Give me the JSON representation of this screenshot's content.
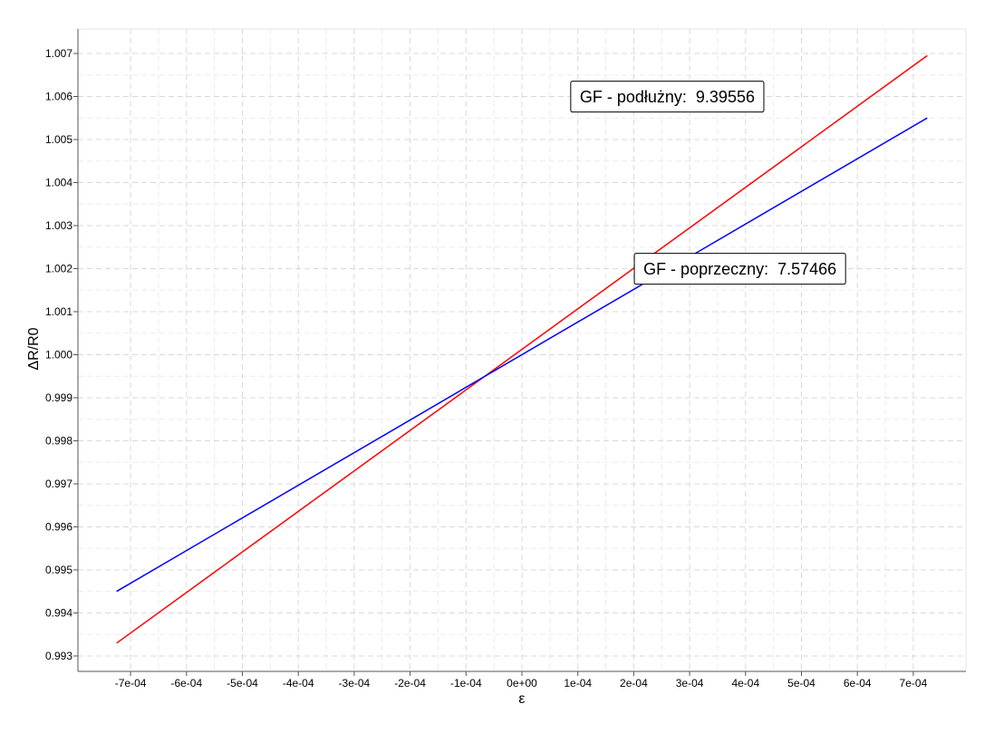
{
  "chart_data": {
    "type": "line",
    "title": "",
    "xlabel": "ε",
    "ylabel": "ΔR/R0",
    "xlim": [
      -0.00082,
      0.0008
    ],
    "ylim": [
      0.99265,
      1.0077
    ],
    "grid": true,
    "x_ticks": [
      -0.0007,
      -0.0006,
      -0.0005,
      -0.0004,
      -0.0003,
      -0.0002,
      -0.0001,
      0,
      0.0001,
      0.0002,
      0.0003,
      0.0004,
      0.0005,
      0.0006,
      0.0007
    ],
    "x_tick_labels": [
      "-7e-04",
      "-6e-04",
      "-5e-04",
      "-4e-04",
      "-3e-04",
      "-2e-04",
      "-1e-04",
      "0e+00",
      "1e-04",
      "2e-04",
      "3e-04",
      "4e-04",
      "5e-04",
      "6e-04",
      "7e-04"
    ],
    "y_ticks": [
      0.993,
      0.994,
      0.995,
      0.996,
      0.997,
      0.998,
      0.999,
      1.0,
      1.001,
      1.002,
      1.003,
      1.004,
      1.005,
      1.006,
      1.007
    ],
    "y_tick_labels": [
      "0.993",
      "0.994",
      "0.995",
      "0.996",
      "0.997",
      "0.998",
      "0.999",
      "1.000",
      "1.001",
      "1.002",
      "1.003",
      "1.004",
      "1.005",
      "1.006",
      "1.007"
    ],
    "series": [
      {
        "color": "#ff0000",
        "x": [
          -0.000725,
          0.000725
        ],
        "y": [
          0.9933,
          1.00695
        ]
      },
      {
        "color": "#0000ff",
        "x": [
          -0.000725,
          0.000725
        ],
        "y": [
          0.9945,
          1.0055
        ]
      }
    ],
    "annotations": [
      {
        "name_text": "GF - podłużny:",
        "value_text": "9.39556",
        "x": 0.00026,
        "y": 1.00597
      },
      {
        "name_text": "GF - poprzeczny:",
        "value_text": "7.57466",
        "x": 0.00039,
        "y": 1.00197
      }
    ]
  }
}
